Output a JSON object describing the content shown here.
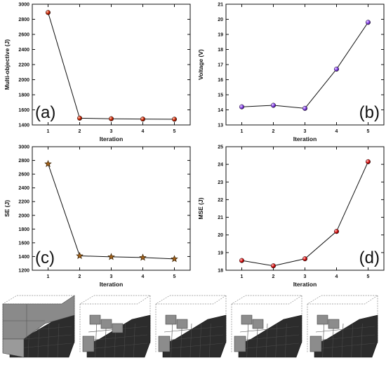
{
  "chart_data": [
    {
      "id": "a",
      "type": "line",
      "panel_label": "(a)",
      "xlabel": "Iteration",
      "ylabel": "Multi-objective (J)",
      "x": [
        1,
        2,
        3,
        4,
        5
      ],
      "y": [
        2890,
        1490,
        1482,
        1478,
        1476
      ],
      "xlim": [
        0.5,
        5.5
      ],
      "ylim": [
        1400,
        3000
      ],
      "xticks": [
        1,
        2,
        3,
        4,
        5
      ],
      "yticks": [
        1400,
        1600,
        1800,
        2000,
        2200,
        2400,
        2600,
        2800,
        3000
      ],
      "marker": "sphere",
      "color": "#cc2200",
      "label_position": "bottom-left"
    },
    {
      "id": "b",
      "type": "line",
      "panel_label": "(b)",
      "xlabel": "Iteration",
      "ylabel": "Voltage (V)",
      "x": [
        1,
        2,
        3,
        4,
        5
      ],
      "y": [
        14.2,
        14.3,
        14.1,
        16.7,
        19.8
      ],
      "xlim": [
        0.5,
        5.5
      ],
      "ylim": [
        13,
        21
      ],
      "xticks": [
        1,
        2,
        3,
        4,
        5
      ],
      "yticks": [
        13,
        14,
        15,
        16,
        17,
        18,
        19,
        20,
        21
      ],
      "marker": "sphere",
      "color": "#8844ee",
      "label_position": "bottom-right"
    },
    {
      "id": "c",
      "type": "line",
      "panel_label": "(c)",
      "xlabel": "Iteration",
      "ylabel": "SE (J)",
      "x": [
        1,
        2,
        3,
        4,
        5
      ],
      "y": [
        2750,
        1410,
        1395,
        1385,
        1365
      ],
      "xlim": [
        0.5,
        5.5
      ],
      "ylim": [
        1200,
        3000
      ],
      "xticks": [
        1,
        2,
        3,
        4,
        5
      ],
      "yticks": [
        1200,
        1400,
        1600,
        1800,
        2000,
        2200,
        2400,
        2600,
        2800,
        3000
      ],
      "marker": "star",
      "color": "#a0601a",
      "label_position": "bottom-left"
    },
    {
      "id": "d",
      "type": "line",
      "panel_label": "(d)",
      "xlabel": "Iteration",
      "ylabel": "MSE (J)",
      "x": [
        1,
        2,
        3,
        4,
        5
      ],
      "y": [
        18.55,
        18.25,
        18.65,
        20.2,
        24.15
      ],
      "xlim": [
        0.5,
        5.5
      ],
      "ylim": [
        18,
        25
      ],
      "xticks": [
        1,
        2,
        3,
        4,
        5
      ],
      "yticks": [
        18,
        19,
        20,
        21,
        22,
        23,
        24,
        25
      ],
      "marker": "sphere",
      "color": "#dd1111",
      "label_position": "bottom-right"
    }
  ],
  "structures": [
    {
      "id": "s1",
      "name": "iteration-1-structure"
    },
    {
      "id": "s2",
      "name": "iteration-2-structure"
    },
    {
      "id": "s3",
      "name": "iteration-3-structure"
    },
    {
      "id": "s4",
      "name": "iteration-4-structure"
    },
    {
      "id": "s5",
      "name": "iteration-5-structure"
    }
  ]
}
